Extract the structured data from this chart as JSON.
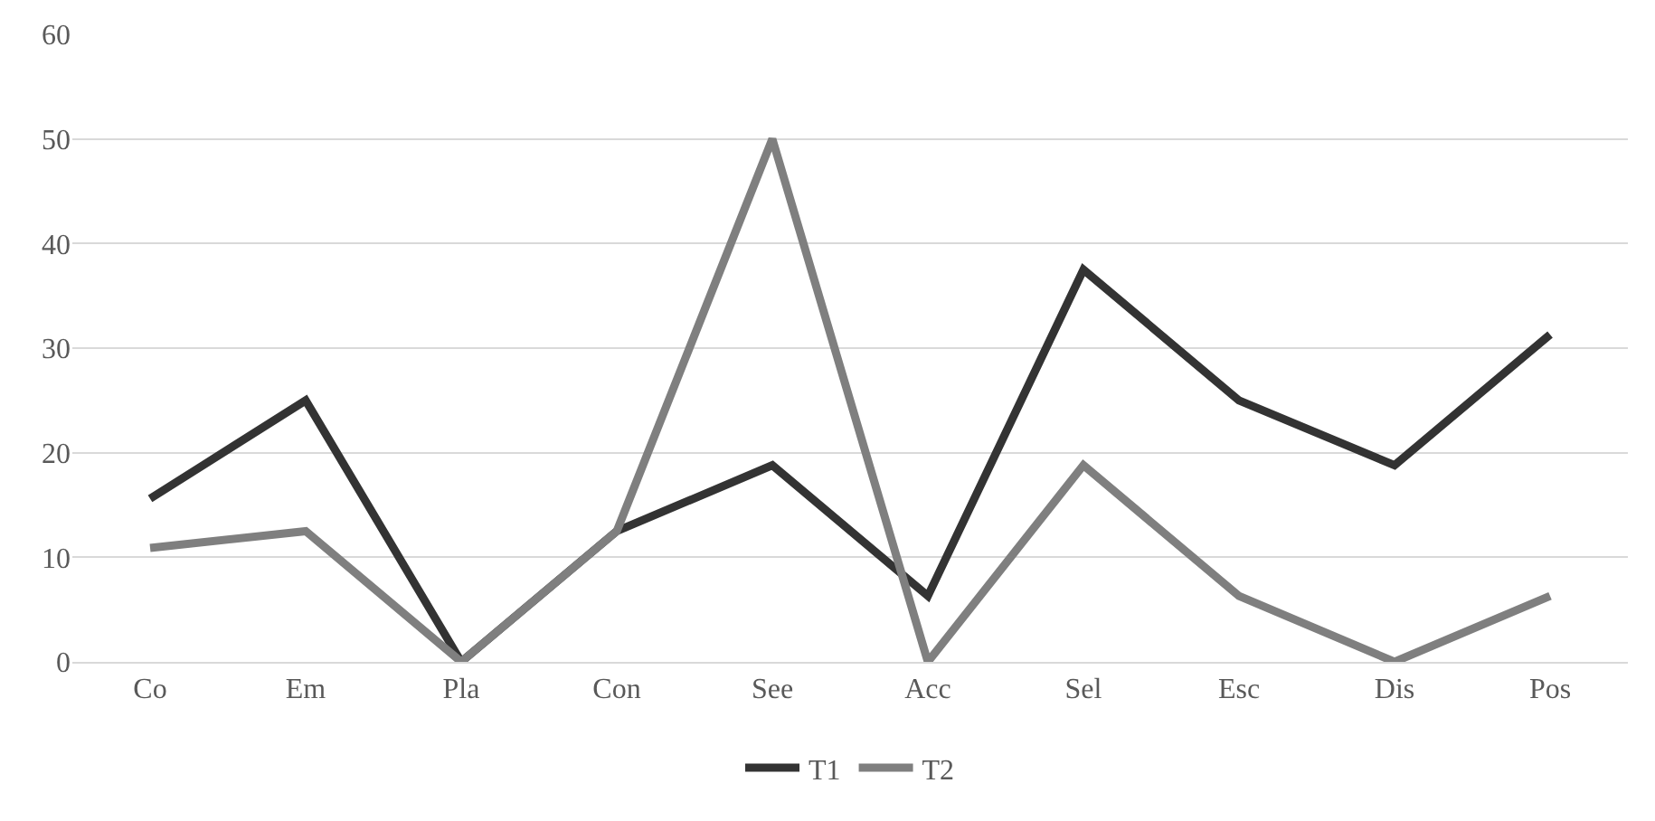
{
  "chart_data": {
    "type": "line",
    "categories": [
      "Co",
      "Em",
      "Pla",
      "Con",
      "See",
      "Acc",
      "Sel",
      "Esc",
      "Dis",
      "Pos"
    ],
    "series": [
      {
        "name": "T1",
        "color": "#333333",
        "values": [
          15.6,
          25,
          0,
          12.5,
          18.8,
          6.3,
          37.5,
          25,
          18.8,
          31.3
        ]
      },
      {
        "name": "T2",
        "color": "#7f7f7f",
        "values": [
          10.9,
          12.5,
          0,
          12.5,
          50,
          0,
          18.8,
          6.3,
          0,
          6.3
        ]
      }
    ],
    "ylim": [
      0,
      60
    ],
    "yticks": [
      0,
      10,
      20,
      30,
      40,
      50,
      60
    ],
    "grid": "y",
    "legend": "bottom",
    "marker": "none",
    "line_style": "solid"
  }
}
